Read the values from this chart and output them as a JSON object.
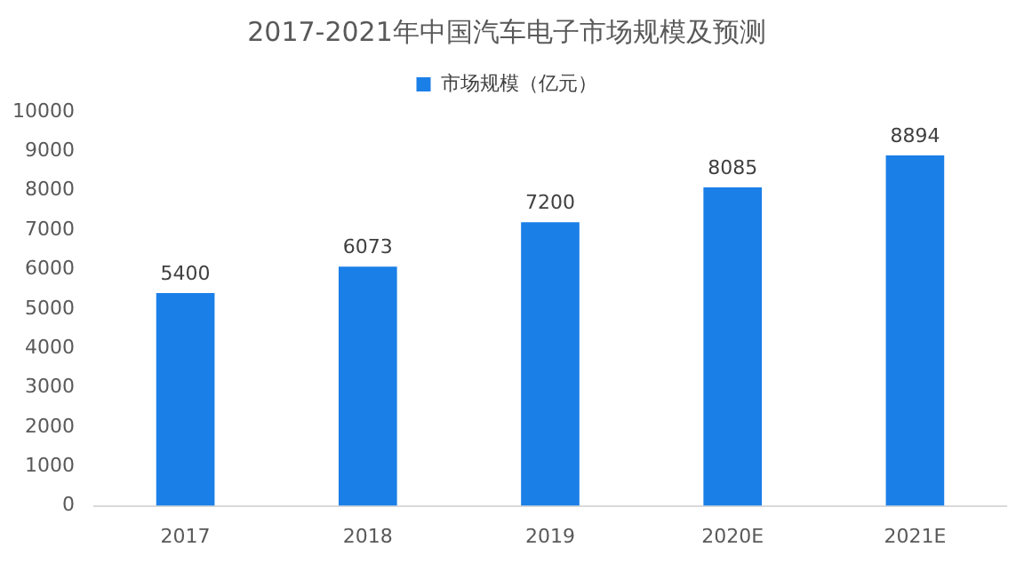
{
  "chart_data": {
    "type": "bar",
    "title": "2017-2021年中国汽车电子市场规模及预测",
    "categories": [
      "2017",
      "2018",
      "2019",
      "2020E",
      "2021E"
    ],
    "series": [
      {
        "name": "市场规模（亿元）",
        "color": "#1b7fe8",
        "values": [
          5400,
          6073,
          7200,
          8085,
          8894
        ]
      }
    ],
    "ylim": [
      0,
      10000
    ],
    "yticks": [
      0,
      1000,
      2000,
      3000,
      4000,
      5000,
      6000,
      7000,
      8000,
      9000,
      10000
    ],
    "grid": false,
    "legend": "top",
    "data_labels": true
  }
}
